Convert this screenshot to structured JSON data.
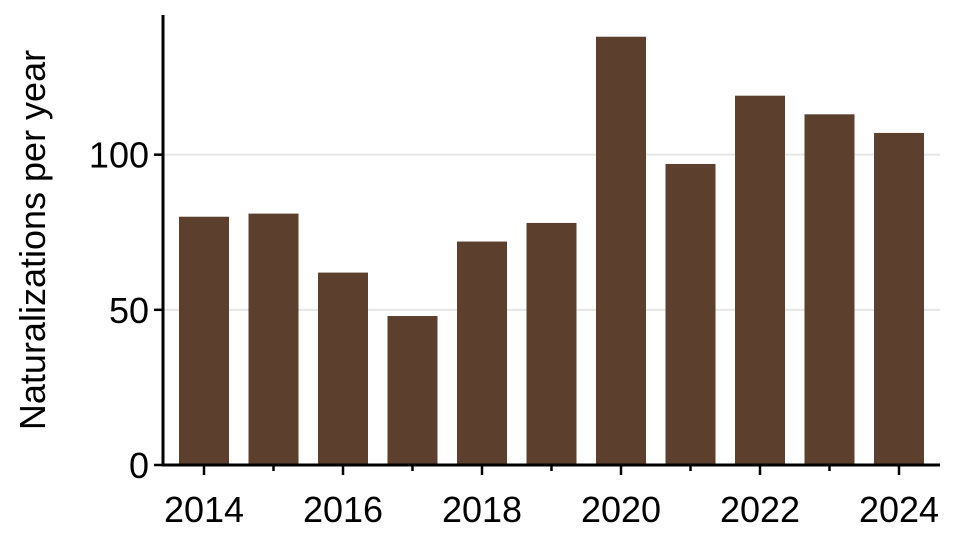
{
  "chart_data": {
    "type": "bar",
    "title": "",
    "xlabel": "",
    "ylabel": "Naturalizations per year",
    "categories": [
      "2014",
      "2015",
      "2016",
      "2017",
      "2018",
      "2019",
      "2020",
      "2021",
      "2022",
      "2023",
      "2024"
    ],
    "x_tick_labels": [
      "2014",
      "2016",
      "2018",
      "2020",
      "2022",
      "2024"
    ],
    "values": [
      80,
      81,
      62,
      48,
      72,
      78,
      138,
      97,
      119,
      113,
      107
    ],
    "ylim": [
      0,
      145
    ],
    "y_ticks": [
      0,
      50,
      100
    ],
    "y_tick_labels": [
      "0",
      "50",
      "100"
    ],
    "grid": "horizontal",
    "legend": "none",
    "colors": {
      "bar": "#5c3f2c",
      "grid": "#e6e6e6",
      "axis": "#000000"
    }
  }
}
